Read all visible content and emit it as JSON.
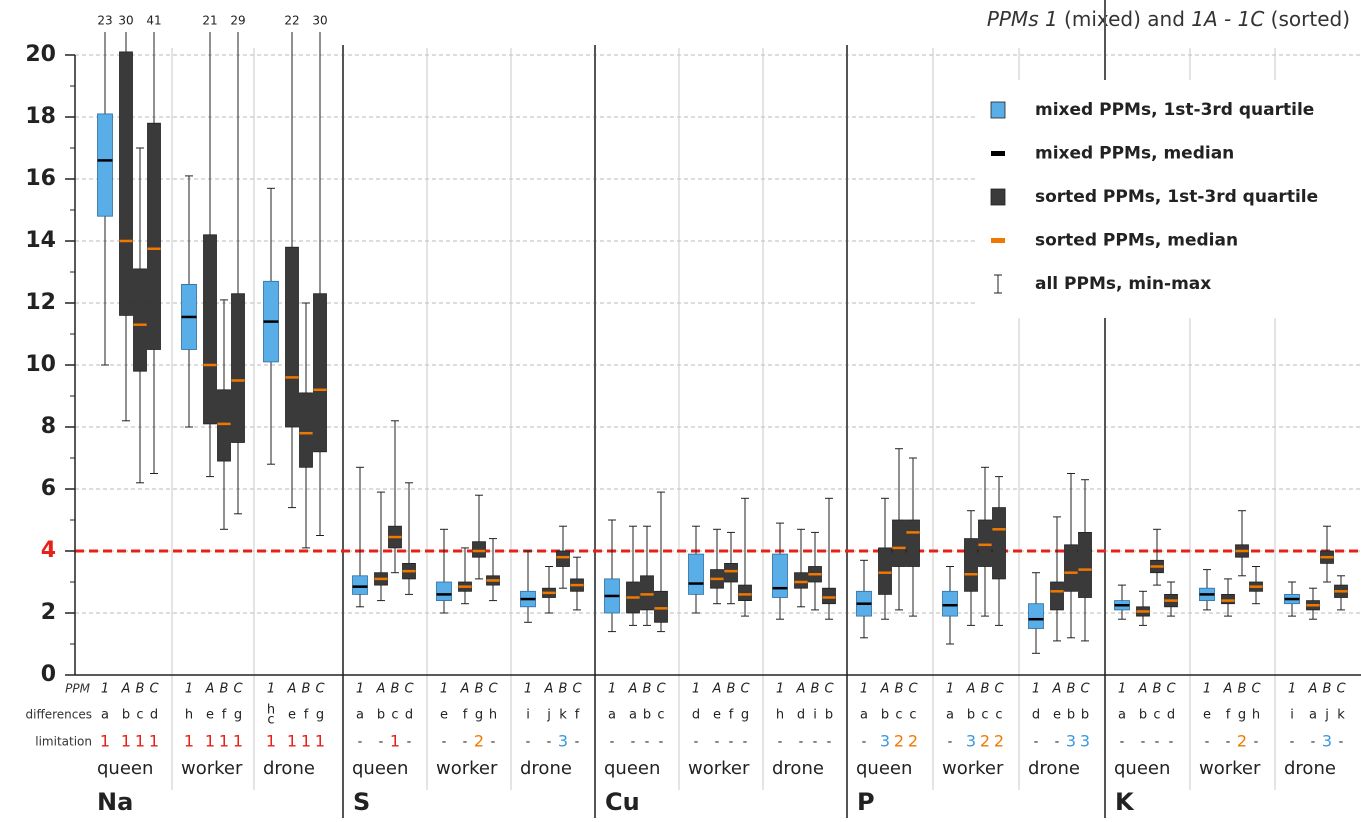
{
  "chart_data": {
    "type": "box",
    "title": [
      {
        "text": "PPMs 1",
        "italic": true
      },
      {
        "text": " (mixed) and ",
        "italic": false
      },
      {
        "text": "1A - 1C",
        "italic": true
      },
      {
        "text": " (sorted)",
        "italic": false
      }
    ],
    "ylim": [
      0,
      20
    ],
    "yticks": [
      0,
      2,
      4,
      6,
      8,
      10,
      12,
      14,
      16,
      18,
      20
    ],
    "yminor": [
      1,
      3,
      5,
      7,
      9,
      11,
      13,
      15,
      17,
      19
    ],
    "grid": true,
    "threshold": {
      "value": 4,
      "color": "#e8201a"
    },
    "row_labels": {
      "ppm": "PPM",
      "differences": "differences",
      "limitation": "limitation"
    },
    "ppms": [
      "1",
      "A",
      "B",
      "C"
    ],
    "ppm_kind": [
      "mixed",
      "sorted",
      "sorted",
      "sorted"
    ],
    "castes": [
      "queen",
      "worker",
      "drone"
    ],
    "colors": {
      "mixed_box": "#5aaee8",
      "sorted_box": "#3a3a3a",
      "mixed_median": "#000000",
      "sorted_median": "#f07800"
    },
    "limitation_colors": {
      "1": "#e8201a",
      "2": "#f07800",
      "3": "#3a9ae0"
    },
    "legend": [
      {
        "label": "mixed PPMs, 1st-3rd quartile",
        "marker": "mixed_box"
      },
      {
        "label": "mixed PPMs, median",
        "marker": "mixed_median"
      },
      {
        "label": "sorted PPMs, 1st-3rd quartile",
        "marker": "sorted_box"
      },
      {
        "label": "sorted PPMs, median",
        "marker": "sorted_median"
      },
      {
        "label": "all PPMs, min-max",
        "marker": "whisker"
      }
    ],
    "elements": [
      {
        "name": "Na",
        "groups": [
          {
            "boxes": [
              {
                "min": 10.0,
                "q1": 14.8,
                "median": 16.6,
                "q3": 18.1,
                "max": 23
              },
              {
                "min": 8.2,
                "q1": 11.6,
                "median": 14.0,
                "q3": 20.1,
                "max": 30
              },
              {
                "min": 6.2,
                "q1": 9.8,
                "median": 11.3,
                "q3": 13.1,
                "max": 17.0
              },
              {
                "min": 6.5,
                "q1": 10.5,
                "median": 13.75,
                "q3": 17.8,
                "max": 41
              }
            ],
            "differences": [
              "a",
              "b",
              "c",
              "d"
            ],
            "limitation": [
              "1",
              "1",
              "1",
              "1"
            ]
          },
          {
            "boxes": [
              {
                "min": 8.0,
                "q1": 10.5,
                "median": 11.55,
                "q3": 12.6,
                "max": 16.1
              },
              {
                "min": 6.4,
                "q1": 8.1,
                "median": 10.0,
                "q3": 14.2,
                "max": 21
              },
              {
                "min": 4.7,
                "q1": 6.9,
                "median": 8.1,
                "q3": 9.2,
                "max": 12.1
              },
              {
                "min": 5.2,
                "q1": 7.5,
                "median": 9.5,
                "q3": 12.3,
                "max": 29
              }
            ],
            "differences": [
              "h",
              "e",
              "f",
              "g"
            ],
            "limitation": [
              "1",
              "1",
              "1",
              "1"
            ]
          },
          {
            "boxes": [
              {
                "min": 6.8,
                "q1": 10.1,
                "median": 11.4,
                "q3": 12.7,
                "max": 15.7
              },
              {
                "min": 5.4,
                "q1": 8.0,
                "median": 9.6,
                "q3": 13.8,
                "max": 22
              },
              {
                "min": 4.1,
                "q1": 6.7,
                "median": 7.8,
                "q3": 9.1,
                "max": 12.0
              },
              {
                "min": 4.5,
                "q1": 7.2,
                "median": 9.2,
                "q3": 12.3,
                "max": 30
              }
            ],
            "differences": [
              [
                "h",
                "c"
              ],
              "e",
              "f",
              "g"
            ],
            "limitation": [
              "1",
              "1",
              "1",
              "1"
            ]
          }
        ]
      },
      {
        "name": "S",
        "groups": [
          {
            "boxes": [
              {
                "min": 2.2,
                "q1": 2.6,
                "median": 2.85,
                "q3": 3.2,
                "max": 6.7
              },
              {
                "min": 2.4,
                "q1": 2.9,
                "median": 3.1,
                "q3": 3.3,
                "max": 5.9
              },
              {
                "min": 3.3,
                "q1": 4.1,
                "median": 4.45,
                "q3": 4.8,
                "max": 8.2
              },
              {
                "min": 2.6,
                "q1": 3.1,
                "median": 3.35,
                "q3": 3.6,
                "max": 6.2
              }
            ],
            "differences": [
              "a",
              "b",
              "c",
              "d"
            ],
            "limitation": [
              "-",
              "-",
              "1",
              "-"
            ]
          },
          {
            "boxes": [
              {
                "min": 2.0,
                "q1": 2.4,
                "median": 2.6,
                "q3": 3.0,
                "max": 4.7
              },
              {
                "min": 2.3,
                "q1": 2.7,
                "median": 2.85,
                "q3": 3.0,
                "max": 4.1
              },
              {
                "min": 3.1,
                "q1": 3.8,
                "median": 4.0,
                "q3": 4.3,
                "max": 5.8
              },
              {
                "min": 2.4,
                "q1": 2.9,
                "median": 3.05,
                "q3": 3.2,
                "max": 4.4
              }
            ],
            "differences": [
              "e",
              "f",
              "g",
              "h"
            ],
            "limitation": [
              "-",
              "-",
              "2",
              "-"
            ]
          },
          {
            "boxes": [
              {
                "min": 1.7,
                "q1": 2.2,
                "median": 2.45,
                "q3": 2.7,
                "max": 4.0
              },
              {
                "min": 2.0,
                "q1": 2.5,
                "median": 2.65,
                "q3": 2.8,
                "max": 3.5
              },
              {
                "min": 2.8,
                "q1": 3.5,
                "median": 3.8,
                "q3": 4.0,
                "max": 4.8
              },
              {
                "min": 2.1,
                "q1": 2.7,
                "median": 2.9,
                "q3": 3.1,
                "max": 3.8
              }
            ],
            "differences": [
              "i",
              "j",
              "k",
              "f"
            ],
            "limitation": [
              "-",
              "-",
              "3",
              "-"
            ]
          }
        ]
      },
      {
        "name": "Cu",
        "groups": [
          {
            "boxes": [
              {
                "min": 1.4,
                "q1": 2.0,
                "median": 2.55,
                "q3": 3.1,
                "max": 5.0
              },
              {
                "min": 1.6,
                "q1": 2.0,
                "median": 2.5,
                "q3": 3.0,
                "max": 4.8
              },
              {
                "min": 1.6,
                "q1": 2.1,
                "median": 2.6,
                "q3": 3.2,
                "max": 4.8
              },
              {
                "min": 1.4,
                "q1": 1.7,
                "median": 2.15,
                "q3": 2.7,
                "max": 5.9
              }
            ],
            "differences": [
              "a",
              "a",
              "b",
              "c"
            ],
            "limitation": [
              "-",
              "-",
              "-",
              "-"
            ]
          },
          {
            "boxes": [
              {
                "min": 2.0,
                "q1": 2.6,
                "median": 2.95,
                "q3": 3.9,
                "max": 4.8
              },
              {
                "min": 2.3,
                "q1": 2.8,
                "median": 3.1,
                "q3": 3.4,
                "max": 4.7
              },
              {
                "min": 2.3,
                "q1": 3.0,
                "median": 3.35,
                "q3": 3.6,
                "max": 4.6
              },
              {
                "min": 1.9,
                "q1": 2.4,
                "median": 2.6,
                "q3": 2.9,
                "max": 5.7
              }
            ],
            "differences": [
              "d",
              "e",
              "f",
              "g"
            ],
            "limitation": [
              "-",
              "-",
              "-",
              "-"
            ]
          },
          {
            "boxes": [
              {
                "min": 1.8,
                "q1": 2.5,
                "median": 2.8,
                "q3": 3.9,
                "max": 4.9
              },
              {
                "min": 2.2,
                "q1": 2.8,
                "median": 3.0,
                "q3": 3.3,
                "max": 4.7
              },
              {
                "min": 2.1,
                "q1": 3.0,
                "median": 3.25,
                "q3": 3.5,
                "max": 4.6
              },
              {
                "min": 1.8,
                "q1": 2.3,
                "median": 2.5,
                "q3": 2.8,
                "max": 5.7
              }
            ],
            "differences": [
              "h",
              "d",
              "i",
              "b"
            ],
            "limitation": [
              "-",
              "-",
              "-",
              "-"
            ]
          }
        ]
      },
      {
        "name": "P",
        "groups": [
          {
            "boxes": [
              {
                "min": 1.2,
                "q1": 1.9,
                "median": 2.3,
                "q3": 2.7,
                "max": 3.7
              },
              {
                "min": 1.8,
                "q1": 2.6,
                "median": 3.3,
                "q3": 4.1,
                "max": 5.7
              },
              {
                "min": 2.1,
                "q1": 3.5,
                "median": 4.1,
                "q3": 5.0,
                "max": 7.3
              },
              {
                "min": 1.9,
                "q1": 3.5,
                "median": 4.6,
                "q3": 5.0,
                "max": 7.0
              }
            ],
            "differences": [
              "a",
              "b",
              "c",
              "c"
            ],
            "limitation": [
              "-",
              "3",
              "2",
              "2"
            ]
          },
          {
            "boxes": [
              {
                "min": 1.0,
                "q1": 1.9,
                "median": 2.25,
                "q3": 2.7,
                "max": 3.5
              },
              {
                "min": 1.6,
                "q1": 2.7,
                "median": 3.25,
                "q3": 4.4,
                "max": 5.3
              },
              {
                "min": 1.9,
                "q1": 3.5,
                "median": 4.2,
                "q3": 5.0,
                "max": 6.7
              },
              {
                "min": 1.6,
                "q1": 3.1,
                "median": 4.7,
                "q3": 5.4,
                "max": 6.4
              }
            ],
            "differences": [
              "a",
              "b",
              "c",
              "c"
            ],
            "limitation": [
              "-",
              "3",
              "2",
              "2"
            ]
          },
          {
            "boxes": [
              {
                "min": 0.7,
                "q1": 1.5,
                "median": 1.8,
                "q3": 2.3,
                "max": 3.3
              },
              {
                "min": 1.1,
                "q1": 2.1,
                "median": 2.7,
                "q3": 3.0,
                "max": 5.1
              },
              {
                "min": 1.2,
                "q1": 2.7,
                "median": 3.3,
                "q3": 4.2,
                "max": 6.5
              },
              {
                "min": 1.1,
                "q1": 2.5,
                "median": 3.4,
                "q3": 4.6,
                "max": 6.3
              }
            ],
            "differences": [
              "d",
              "e",
              "b",
              "b"
            ],
            "limitation": [
              "-",
              "-",
              "3",
              "3"
            ]
          }
        ]
      },
      {
        "name": "K",
        "groups": [
          {
            "boxes": [
              {
                "min": 1.8,
                "q1": 2.1,
                "median": 2.25,
                "q3": 2.4,
                "max": 2.9
              },
              {
                "min": 1.6,
                "q1": 1.9,
                "median": 2.05,
                "q3": 2.2,
                "max": 2.7
              },
              {
                "min": 2.9,
                "q1": 3.3,
                "median": 3.5,
                "q3": 3.7,
                "max": 4.7
              },
              {
                "min": 1.9,
                "q1": 2.2,
                "median": 2.4,
                "q3": 2.6,
                "max": 3.0
              }
            ],
            "differences": [
              "a",
              "b",
              "c",
              "d"
            ],
            "limitation": [
              "-",
              "-",
              "-",
              "-"
            ]
          },
          {
            "boxes": [
              {
                "min": 2.1,
                "q1": 2.4,
                "median": 2.6,
                "q3": 2.8,
                "max": 3.4
              },
              {
                "min": 1.9,
                "q1": 2.3,
                "median": 2.4,
                "q3": 2.6,
                "max": 3.1
              },
              {
                "min": 3.2,
                "q1": 3.8,
                "median": 4.0,
                "q3": 4.2,
                "max": 5.3
              },
              {
                "min": 2.3,
                "q1": 2.7,
                "median": 2.85,
                "q3": 3.0,
                "max": 3.5
              }
            ],
            "differences": [
              "e",
              "f",
              "g",
              "h"
            ],
            "limitation": [
              "-",
              "-",
              "2",
              "-"
            ]
          },
          {
            "boxes": [
              {
                "min": 1.9,
                "q1": 2.3,
                "median": 2.45,
                "q3": 2.6,
                "max": 3.0
              },
              {
                "min": 1.8,
                "q1": 2.1,
                "median": 2.25,
                "q3": 2.4,
                "max": 2.8
              },
              {
                "min": 3.0,
                "q1": 3.6,
                "median": 3.8,
                "q3": 4.0,
                "max": 4.8
              },
              {
                "min": 2.1,
                "q1": 2.5,
                "median": 2.7,
                "q3": 2.9,
                "max": 3.2
              }
            ],
            "differences": [
              "i",
              "a",
              "j",
              "k"
            ],
            "limitation": [
              "-",
              "-",
              "3",
              "-"
            ]
          }
        ]
      }
    ]
  }
}
